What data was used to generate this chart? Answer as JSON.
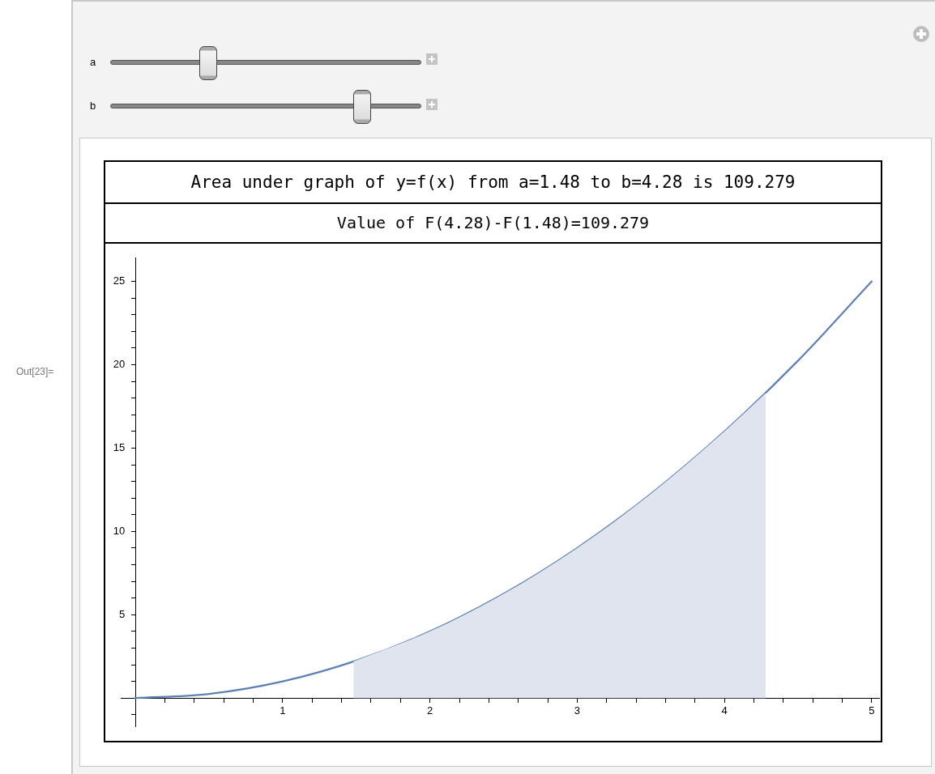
{
  "chart_data": {
    "type": "line",
    "title": "Area under graph of y=f(x) from a=1.48 to b=4.28 is 109.279",
    "subtitle": "Value of F(4.28)-F(1.48)=109.279",
    "annotations": [
      "a",
      "b",
      "Out[23]="
    ],
    "marker": "none",
    "xlim": [
      -0.1,
      5.05
    ],
    "ylim": [
      -1.7,
      26.4
    ],
    "xticks": [
      {
        "value": 0.2,
        "label": null
      },
      {
        "value": 0.4,
        "label": null
      },
      {
        "value": 0.6,
        "label": null
      },
      {
        "value": 0.8,
        "label": null
      },
      1,
      {
        "value": 1.2,
        "label": null
      },
      {
        "value": 1.4,
        "label": null
      },
      {
        "value": 1.6,
        "label": null
      },
      {
        "value": 1.8,
        "label": null
      },
      2,
      {
        "value": 2.2,
        "label": null
      },
      {
        "value": 2.4,
        "label": null
      },
      {
        "value": 2.6,
        "label": null
      },
      {
        "value": 2.8,
        "label": null
      },
      3,
      {
        "value": 3.2,
        "label": null
      },
      {
        "value": 3.4,
        "label": null
      },
      {
        "value": 3.6,
        "label": null
      },
      {
        "value": 3.8,
        "label": null
      },
      4,
      {
        "value": 4.2,
        "label": null
      },
      {
        "value": 4.4,
        "label": null
      },
      {
        "value": 4.6,
        "label": null
      },
      {
        "value": 4.8,
        "label": null
      },
      5
    ],
    "yticks": [
      {
        "value": -1,
        "label": null
      },
      {
        "value": 1,
        "label": null
      },
      {
        "value": 2,
        "label": null
      },
      {
        "value": 3,
        "label": null
      },
      {
        "value": 4,
        "label": null
      },
      5,
      {
        "value": 6,
        "label": null
      },
      {
        "value": 7,
        "label": null
      },
      {
        "value": 8,
        "label": null
      },
      {
        "value": 9,
        "label": null
      },
      10,
      {
        "value": 11,
        "label": null
      },
      {
        "value": 12,
        "label": null
      },
      {
        "value": 13,
        "label": null
      },
      {
        "value": 14,
        "label": null
      },
      15,
      {
        "value": 16,
        "label": null
      },
      {
        "value": 17,
        "label": null
      },
      {
        "value": 18,
        "label": null
      },
      {
        "value": 19,
        "label": null
      },
      20,
      {
        "value": 21,
        "label": null
      },
      {
        "value": 22,
        "label": null
      },
      {
        "value": 23,
        "label": null
      },
      {
        "value": 24,
        "label": null
      },
      25
    ],
    "series": [
      {
        "type": "area",
        "color": "#dfe4ef",
        "x": [
          1.48,
          2,
          2.5,
          3,
          3.5,
          4,
          4.28
        ],
        "values": [
          2.2,
          4,
          6.25,
          9,
          12.25,
          16,
          18.3
        ]
      },
      {
        "type": "line",
        "color": "#5e81b5",
        "x": [
          0,
          0.5,
          1,
          1.5,
          2,
          2.5,
          3,
          3.5,
          4,
          4.5,
          5
        ],
        "values": [
          0,
          0.25,
          1,
          2.25,
          4,
          6.25,
          9,
          12.25,
          16,
          20.25,
          25
        ]
      }
    ]
  }
}
